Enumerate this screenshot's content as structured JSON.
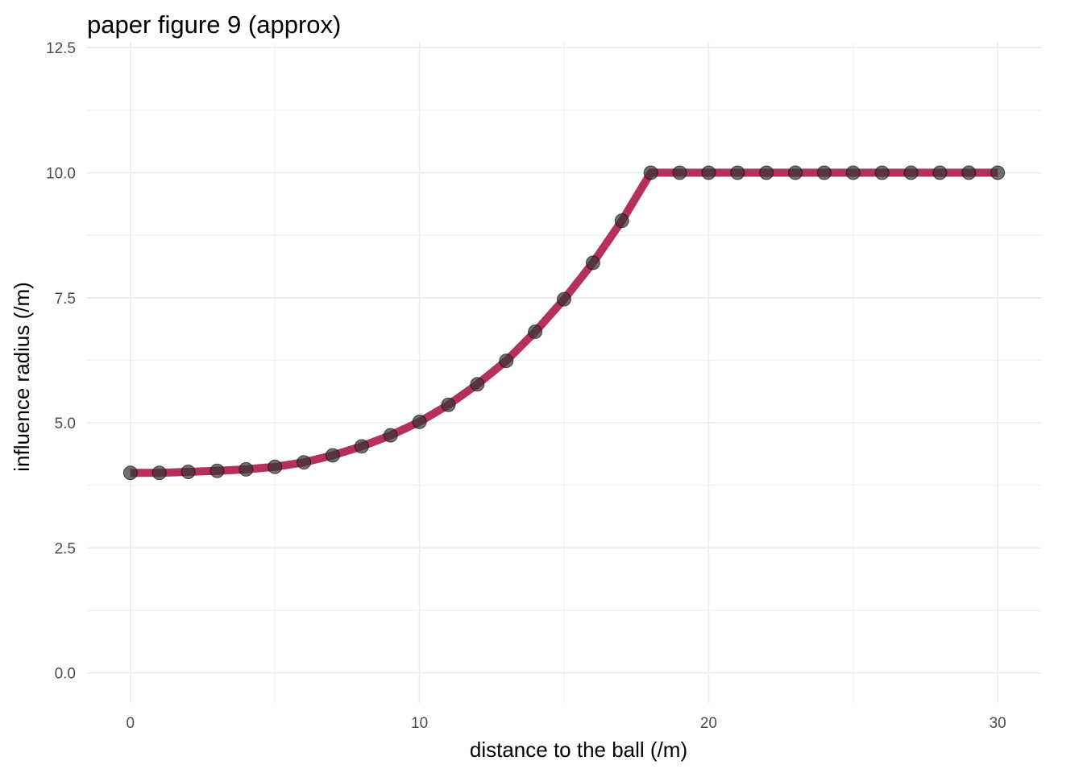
{
  "chart_data": {
    "type": "line",
    "title": "paper figure 9 (approx)",
    "xlabel": "distance to the ball (/m)",
    "ylabel": "influence radius (/m)",
    "xlim": [
      -1.5,
      31.5
    ],
    "ylim": [
      -0.6,
      12.6
    ],
    "x_ticks": [
      0,
      10,
      20,
      30
    ],
    "x_tick_labels": [
      "0",
      "10",
      "20",
      "30"
    ],
    "y_ticks": [
      0,
      2.5,
      5,
      7.5,
      10,
      12.5
    ],
    "y_tick_labels": [
      "0.0",
      "2.5",
      "5.0",
      "7.5",
      "10.0",
      "12.5"
    ],
    "grid": true,
    "line_color": "#b5305e",
    "point_color": "#333333",
    "series": [
      {
        "x": [
          0,
          1,
          2,
          3,
          4,
          5,
          6,
          7,
          8,
          9,
          10,
          11,
          12,
          13,
          14,
          15,
          16,
          17,
          18,
          19,
          20,
          21,
          22,
          23,
          24,
          25,
          26,
          27,
          28,
          29,
          30
        ],
        "y": [
          4.0,
          4.0,
          4.02,
          4.04,
          4.07,
          4.12,
          4.21,
          4.35,
          4.53,
          4.75,
          5.02,
          5.36,
          5.77,
          6.24,
          6.82,
          7.47,
          8.2,
          9.04,
          10.0,
          10.0,
          10.0,
          10.0,
          10.0,
          10.0,
          10.0,
          10.0,
          10.0,
          10.0,
          10.0,
          10.0,
          10.0
        ]
      }
    ]
  }
}
